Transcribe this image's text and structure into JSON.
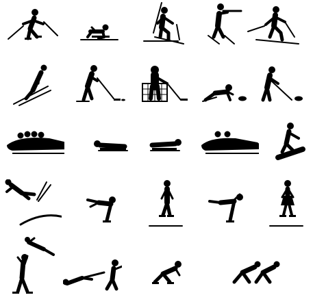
{
  "page": {
    "background": "#ffffff",
    "ink_color": "#000000"
  },
  "pictograms": [
    {
      "row": 1,
      "col": 1,
      "icon": "alpine-skiing-icon"
    },
    {
      "row": 1,
      "col": 2,
      "icon": "skeleton-start-push-icon"
    },
    {
      "row": 1,
      "col": 3,
      "icon": "cross-country-skiing-icon"
    },
    {
      "row": 1,
      "col": 4,
      "icon": "biathlon-standing-shooting-icon"
    },
    {
      "row": 1,
      "col": 5,
      "icon": "nordic-skiing-stride-icon"
    },
    {
      "row": 2,
      "col": 1,
      "icon": "ski-jumping-icon"
    },
    {
      "row": 2,
      "col": 2,
      "icon": "ice-hockey-player-icon"
    },
    {
      "row": 2,
      "col": 3,
      "icon": "ice-hockey-goalie-icon"
    },
    {
      "row": 2,
      "col": 4,
      "icon": "curling-delivery-icon"
    },
    {
      "row": 2,
      "col": 5,
      "icon": "curling-sweeping-icon"
    },
    {
      "row": 3,
      "col": 1,
      "icon": "bobsleigh-four-man-icon"
    },
    {
      "row": 3,
      "col": 2,
      "icon": "luge-icon"
    },
    {
      "row": 3,
      "col": 3,
      "icon": "skeleton-icon"
    },
    {
      "row": 3,
      "col": 4,
      "icon": "bobsleigh-two-man-icon"
    },
    {
      "row": 3,
      "col": 5,
      "icon": "snowboarding-icon"
    },
    {
      "row": 4,
      "col": 1,
      "icon": "freestyle-halfpipe-icon"
    },
    {
      "row": 4,
      "col": 2,
      "icon": "figure-skating-spiral-icon"
    },
    {
      "row": 4,
      "col": 3,
      "icon": "figure-skater-man-icon"
    },
    {
      "row": 4,
      "col": 4,
      "icon": "figure-skating-arabesque-icon"
    },
    {
      "row": 4,
      "col": 5,
      "icon": "figure-skater-woman-icon"
    },
    {
      "row": 5,
      "col": 1,
      "icon": "pair-skating-lift-icon"
    },
    {
      "row": 5,
      "col": 2,
      "icon": "pair-skating-death-spiral-icon"
    },
    {
      "row": 5,
      "col": 3,
      "icon": "speed-skating-icon"
    },
    {
      "row": 5,
      "col": 4,
      "icon": "short-track-speed-skating-icon"
    }
  ]
}
